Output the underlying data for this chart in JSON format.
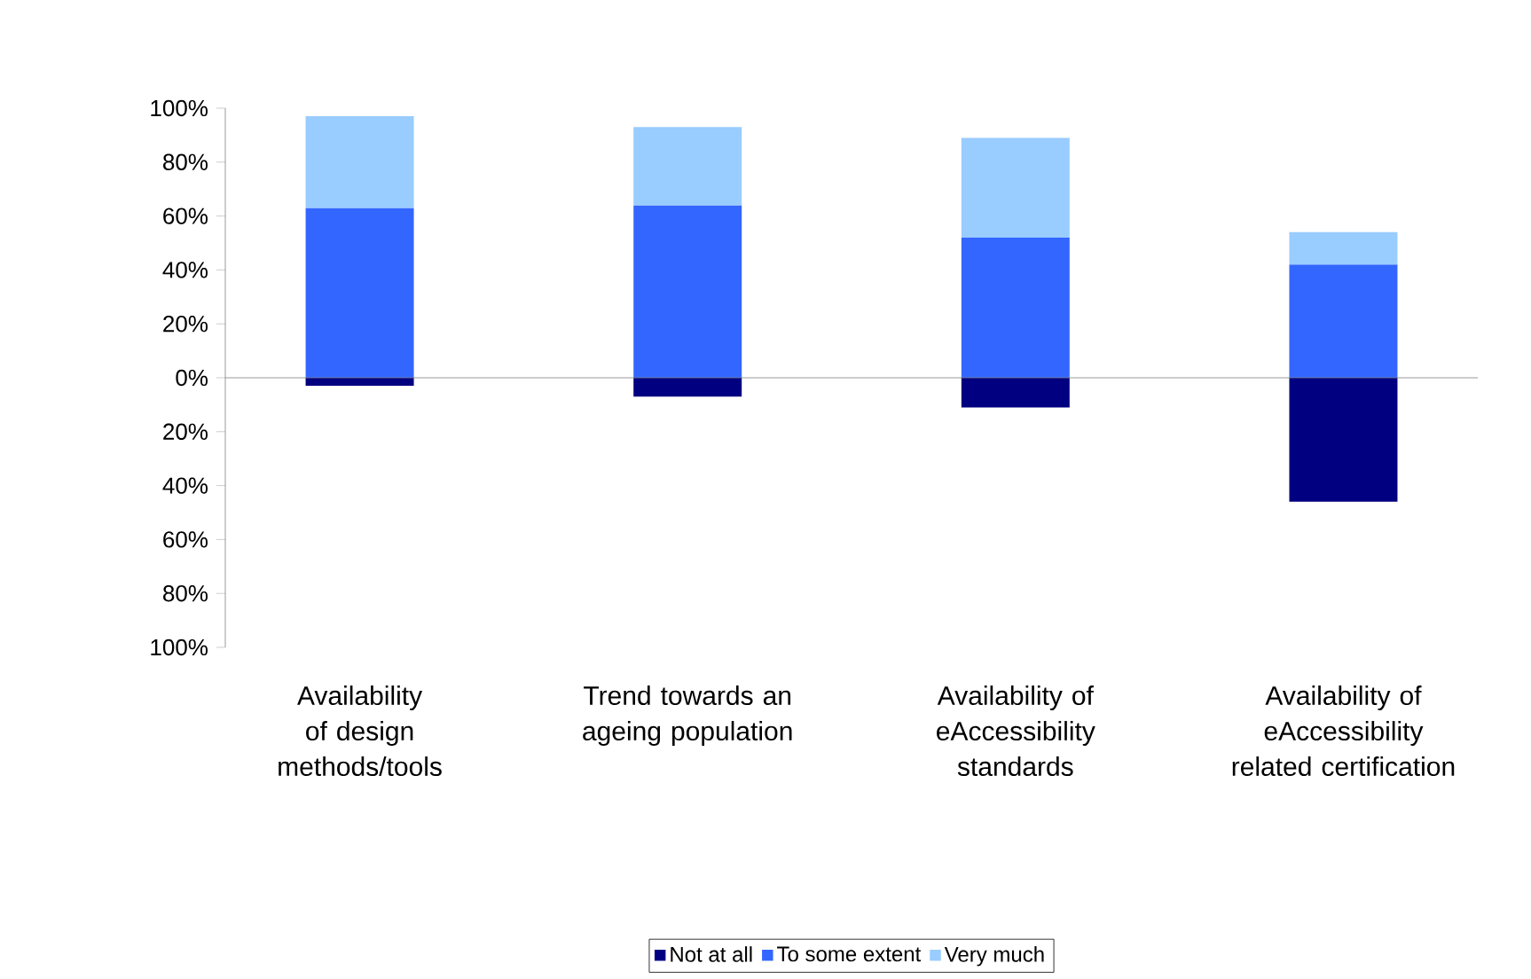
{
  "chart_data": {
    "type": "bar",
    "stacked": true,
    "categories": [
      "Availability of design methods/tools",
      "Trend towards an ageing population",
      "Availability of eAccessibility standards",
      "Availability of eAccessibility related certification"
    ],
    "series": [
      {
        "name": "Not at all",
        "color": "#000080",
        "values": [
          -3,
          -7,
          -11,
          -46
        ]
      },
      {
        "name": "To some extent",
        "color": "#3366ff",
        "values": [
          63,
          64,
          52,
          42
        ]
      },
      {
        "name": "Very much",
        "color": "#99ccff",
        "values": [
          34,
          29,
          37,
          12
        ]
      }
    ],
    "ylim": [
      -100,
      100
    ],
    "yticks": [
      {
        "value": -100,
        "label": "100%"
      },
      {
        "value": -80,
        "label": "80%"
      },
      {
        "value": -60,
        "label": "60%"
      },
      {
        "value": -40,
        "label": "40%"
      },
      {
        "value": -20,
        "label": "20%"
      },
      {
        "value": 0,
        "label": "0%"
      },
      {
        "value": 20,
        "label": "20%"
      },
      {
        "value": 40,
        "label": "40%"
      },
      {
        "value": 60,
        "label": "60%"
      },
      {
        "value": 80,
        "label": "80%"
      },
      {
        "value": 100,
        "label": "100%"
      }
    ],
    "ref_lines": [
      {
        "axis": "y",
        "value": 0,
        "color": "#808080"
      }
    ],
    "legend": "bottom"
  }
}
